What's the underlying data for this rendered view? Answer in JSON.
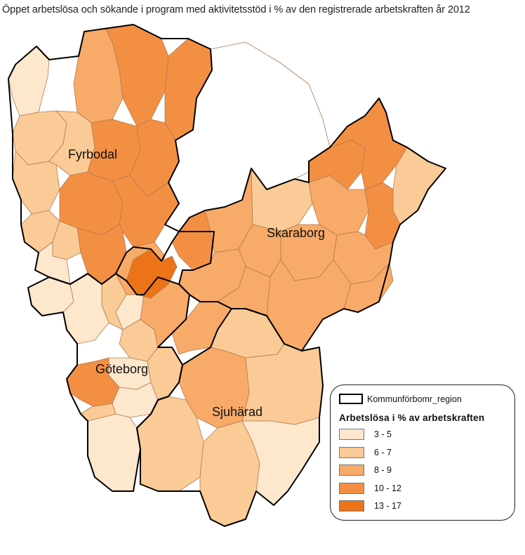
{
  "title": "Öppet arbetslösa och sökande i program med aktivitetsstöd i % av den registrerade arbetskraften år 2012",
  "regions": {
    "fyrbodal": "Fyrbodal",
    "skaraborg": "Skaraborg",
    "goteborg": "Göteborg",
    "sjuharad": "Sjuhärad"
  },
  "legend": {
    "boundary_label": "Kommunförbomr_region",
    "title": "Arbetslösa i % av arbetskraften",
    "classes": [
      {
        "label": "3 - 5",
        "color": "#fde7cd"
      },
      {
        "label": "6 - 7",
        "color": "#fbcb97"
      },
      {
        "label": "8 - 9",
        "color": "#f8aa68"
      },
      {
        "label": "10 - 12",
        "color": "#f38f43"
      },
      {
        "label": "13 - 17",
        "color": "#ec7317"
      }
    ]
  }
}
